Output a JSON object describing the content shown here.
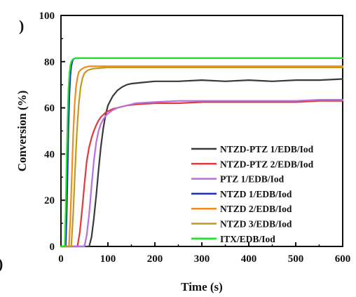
{
  "chart_data": {
    "type": "line",
    "title": "",
    "xlabel": "Time (s)",
    "ylabel": "Conversion (%)",
    "xlim": [
      0,
      600
    ],
    "ylim": [
      0,
      100
    ],
    "xticks": [
      "0",
      "100",
      "200",
      "300",
      "400",
      "500",
      "600"
    ],
    "yticks": [
      "0",
      "20",
      "40",
      "60",
      "80",
      "100"
    ],
    "xtick_values": [
      0,
      100,
      200,
      300,
      400,
      500,
      600
    ],
    "ytick_values": [
      0,
      20,
      40,
      60,
      80,
      100
    ],
    "grid": false,
    "legend_position": "bottom-right",
    "panel_marks": [
      ")",
      ")"
    ],
    "series": [
      {
        "name": "NTZD-PTZ 1/EDB/Iod",
        "color": "#3a3a3a",
        "x": [
          0,
          60,
          65,
          70,
          75,
          80,
          85,
          90,
          95,
          100,
          110,
          120,
          130,
          140,
          150,
          175,
          200,
          250,
          300,
          350,
          400,
          450,
          500,
          550,
          600
        ],
        "y": [
          0,
          0,
          4,
          12,
          22,
          33,
          43,
          51,
          57,
          61,
          65,
          67.5,
          69,
          70,
          70.5,
          71,
          71.5,
          71.5,
          72,
          71.5,
          72,
          71.5,
          72,
          72,
          72.5
        ]
      },
      {
        "name": "NTZD-PTZ 2/EDB/Iod",
        "color": "#e03a3a",
        "x": [
          0,
          35,
          40,
          45,
          50,
          55,
          60,
          65,
          70,
          75,
          80,
          85,
          90,
          95,
          100,
          110,
          120,
          140,
          160,
          200,
          250,
          300,
          350,
          400,
          450,
          500,
          550,
          600
        ],
        "y": [
          0,
          0,
          6,
          16,
          27,
          37,
          43,
          47,
          50,
          52.5,
          54.5,
          56,
          57,
          58,
          58.5,
          59.5,
          60,
          61,
          61.5,
          62,
          62,
          62.5,
          62.5,
          62.5,
          62.5,
          62.5,
          63,
          63
        ]
      },
      {
        "name": "PTZ 1/EDB/Iod",
        "color": "#b86fe0",
        "x": [
          0,
          50,
          55,
          60,
          65,
          70,
          75,
          80,
          85,
          90,
          95,
          100,
          110,
          120,
          140,
          160,
          200,
          250,
          300,
          350,
          400,
          450,
          500,
          550,
          600
        ],
        "y": [
          0,
          0,
          5,
          14,
          26,
          37,
          45,
          50,
          53,
          55,
          56.5,
          57.5,
          59,
          60,
          61,
          62,
          62.5,
          63,
          63,
          63,
          63,
          63,
          63,
          63.5,
          63.5
        ]
      },
      {
        "name": "NTZD 1/EDB/Iod",
        "color": "#1a2fc9",
        "x": [
          0,
          10,
          12,
          14,
          16,
          18,
          20,
          22,
          24,
          26,
          30,
          35,
          40,
          60,
          100,
          200,
          300,
          400,
          500,
          600
        ],
        "y": [
          0,
          0,
          12,
          32,
          52,
          66,
          74,
          78,
          80,
          81,
          81.5,
          81.5,
          81.5,
          81.5,
          81.5,
          81.5,
          81.5,
          81.5,
          81.5,
          81.5
        ]
      },
      {
        "name": "NTZD 2/EDB/Iod",
        "color": "#f08c1a",
        "x": [
          0,
          17,
          20,
          23,
          26,
          29,
          32,
          35,
          38,
          42,
          46,
          50,
          60,
          100,
          200,
          300,
          400,
          500,
          600
        ],
        "y": [
          0,
          0,
          12,
          30,
          48,
          61,
          69,
          73,
          75.5,
          76.5,
          77,
          77.5,
          78,
          78,
          78,
          78,
          78,
          78,
          78
        ]
      },
      {
        "name": "NTZD 3/EDB/Iod",
        "color": "#c49a1c",
        "x": [
          0,
          22,
          26,
          30,
          34,
          38,
          42,
          46,
          50,
          55,
          60,
          70,
          100,
          200,
          300,
          400,
          500,
          600
        ],
        "y": [
          0,
          0,
          14,
          33,
          50,
          62,
          69,
          73,
          75,
          76,
          76.5,
          77,
          77.5,
          77.5,
          77.5,
          77.5,
          77.5,
          77.5
        ]
      },
      {
        "name": "ITX/EDB/Iod",
        "color": "#22e22a",
        "x": [
          0,
          8,
          10,
          12,
          14,
          16,
          18,
          20,
          22,
          25,
          30,
          40,
          60,
          100,
          200,
          300,
          400,
          500,
          600
        ],
        "y": [
          0,
          0,
          15,
          36,
          55,
          68,
          75,
          78.5,
          80,
          81,
          81.5,
          81.5,
          81.5,
          81.5,
          81.5,
          81.5,
          81.5,
          81.5,
          81.5
        ]
      }
    ]
  }
}
